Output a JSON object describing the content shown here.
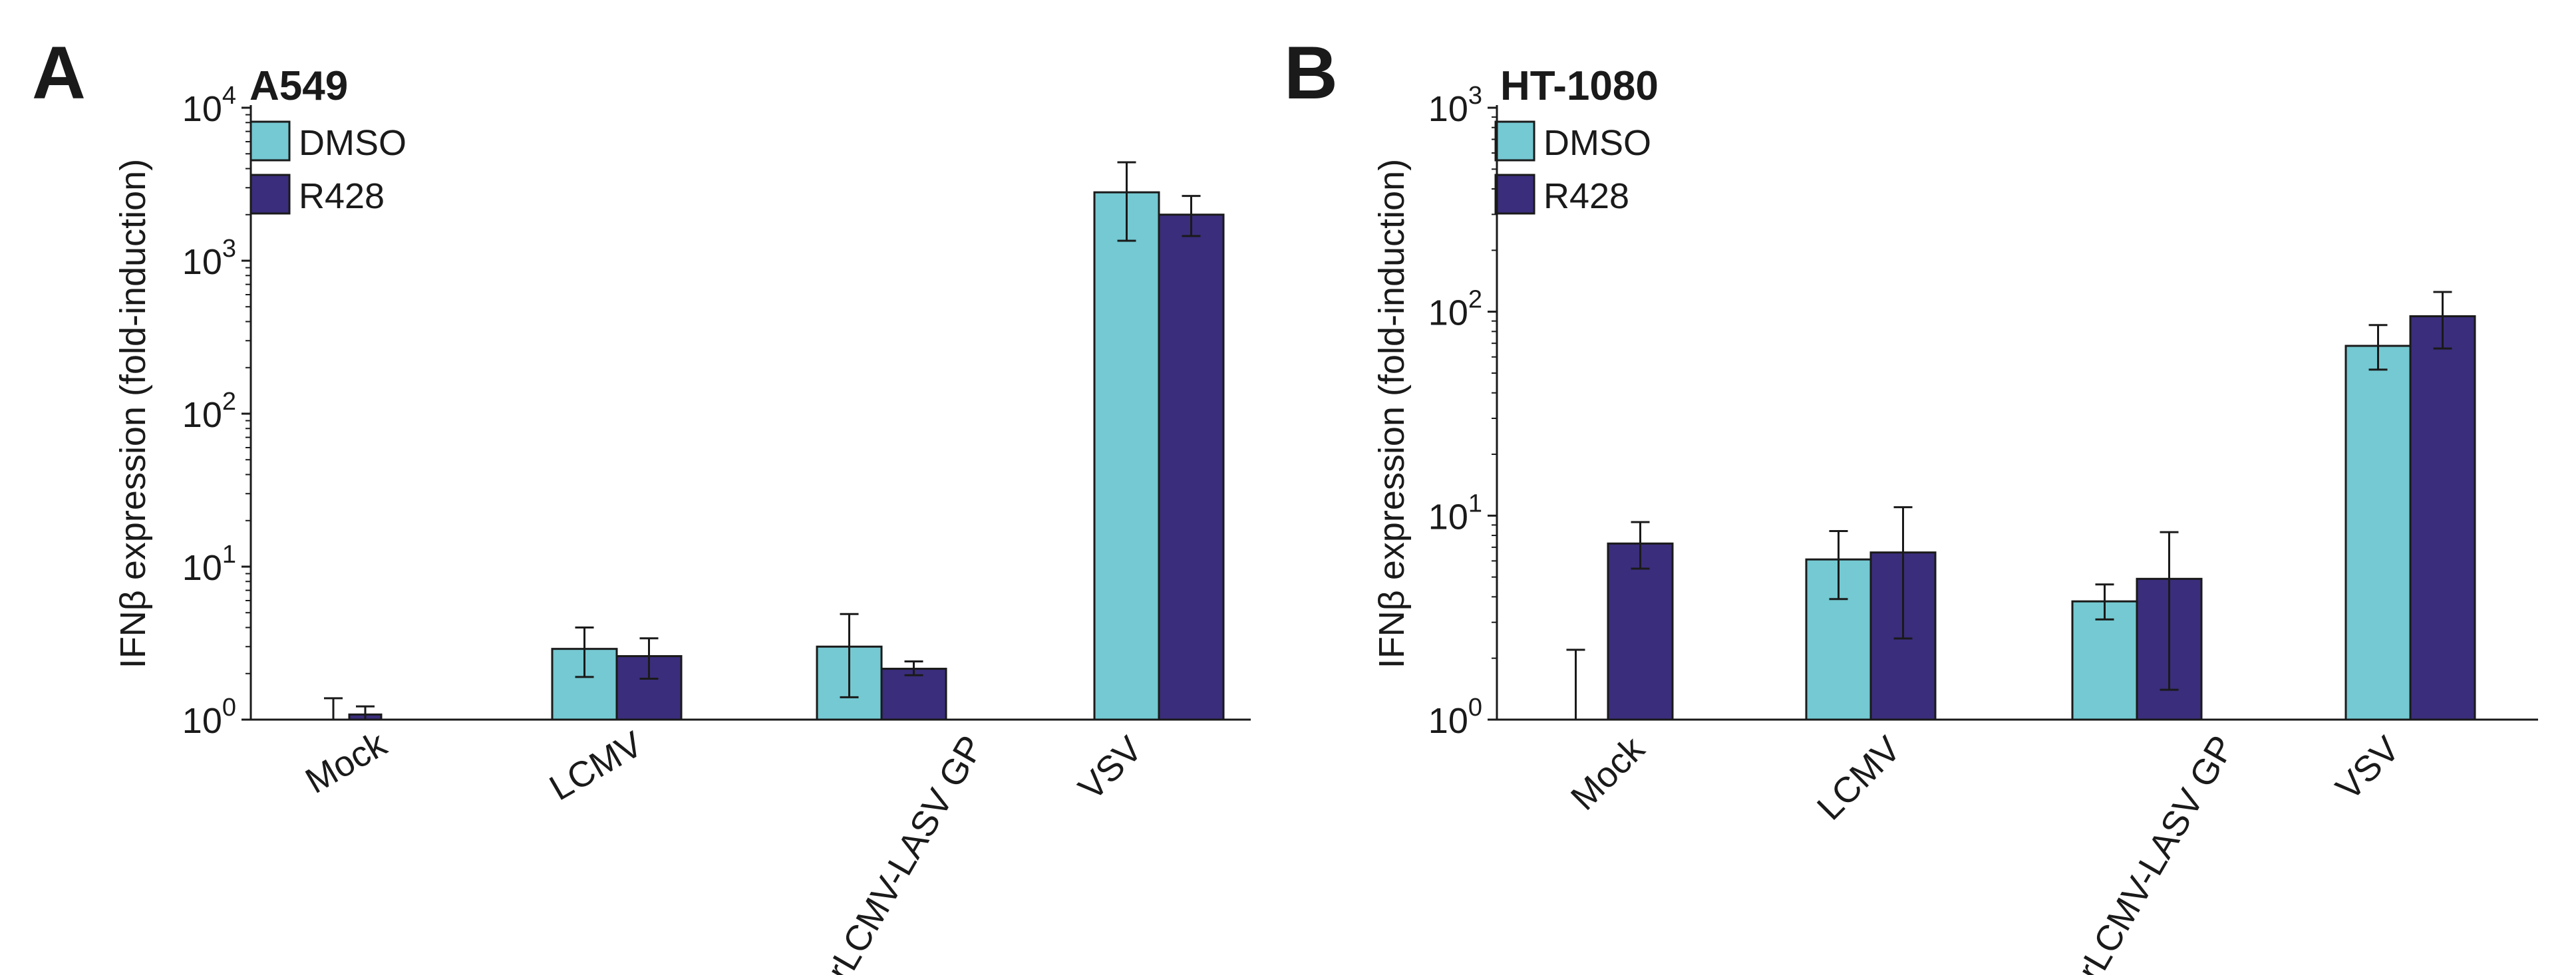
{
  "chart_data": [
    {
      "panel_label": "A",
      "title": "A549",
      "type": "bar",
      "scale": "log",
      "ylabel": "IFNβ expression (fold-induction)",
      "ylim": [
        1,
        10000
      ],
      "y_ticks": [
        {
          "base": "10",
          "exp": "0",
          "value": 1
        },
        {
          "base": "10",
          "exp": "1",
          "value": 10
        },
        {
          "base": "10",
          "exp": "2",
          "value": 100
        },
        {
          "base": "10",
          "exp": "3",
          "value": 1000
        },
        {
          "base": "10",
          "exp": "4",
          "value": 10000
        }
      ],
      "categories": [
        "Mock",
        "LCMV",
        "rLCMV-LASV GP",
        "VSV"
      ],
      "series": [
        {
          "name": "DMSO",
          "color": "#74c9d2",
          "values": [
            1.0,
            2.9,
            3.0,
            2800
          ],
          "error_low": [
            1.0,
            1.9,
            1.4,
            1350
          ],
          "error_high": [
            1.38,
            4.0,
            4.9,
            4400
          ]
        },
        {
          "name": "R428",
          "color": "#3a2d7c",
          "values": [
            1.08,
            2.6,
            2.15,
            2000
          ],
          "error_low": [
            1.0,
            1.85,
            1.95,
            1450
          ],
          "error_high": [
            1.22,
            3.4,
            2.4,
            2650
          ]
        }
      ],
      "legend": "top-left"
    },
    {
      "panel_label": "B",
      "title": "HT-1080",
      "type": "bar",
      "scale": "log",
      "ylabel": "IFNβ expression (fold-induction)",
      "ylim": [
        1,
        1000
      ],
      "y_ticks": [
        {
          "base": "10",
          "exp": "0",
          "value": 1
        },
        {
          "base": "10",
          "exp": "1",
          "value": 10
        },
        {
          "base": "10",
          "exp": "2",
          "value": 100
        },
        {
          "base": "10",
          "exp": "3",
          "value": 1000
        }
      ],
      "categories": [
        "Mock",
        "LCMV",
        "rLCMV-LASV GP",
        "VSV"
      ],
      "series": [
        {
          "name": "DMSO",
          "color": "#74c9d2",
          "values": [
            1.0,
            6.1,
            3.8,
            68
          ],
          "error_low": [
            1.0,
            3.9,
            3.1,
            52
          ],
          "error_high": [
            2.2,
            8.4,
            4.6,
            86
          ]
        },
        {
          "name": "R428",
          "color": "#3a2d7c",
          "values": [
            7.3,
            6.6,
            4.9,
            95
          ],
          "error_low": [
            5.5,
            2.5,
            1.4,
            66
          ],
          "error_high": [
            9.3,
            11.0,
            8.3,
            125
          ]
        }
      ],
      "legend": "top-left"
    }
  ]
}
